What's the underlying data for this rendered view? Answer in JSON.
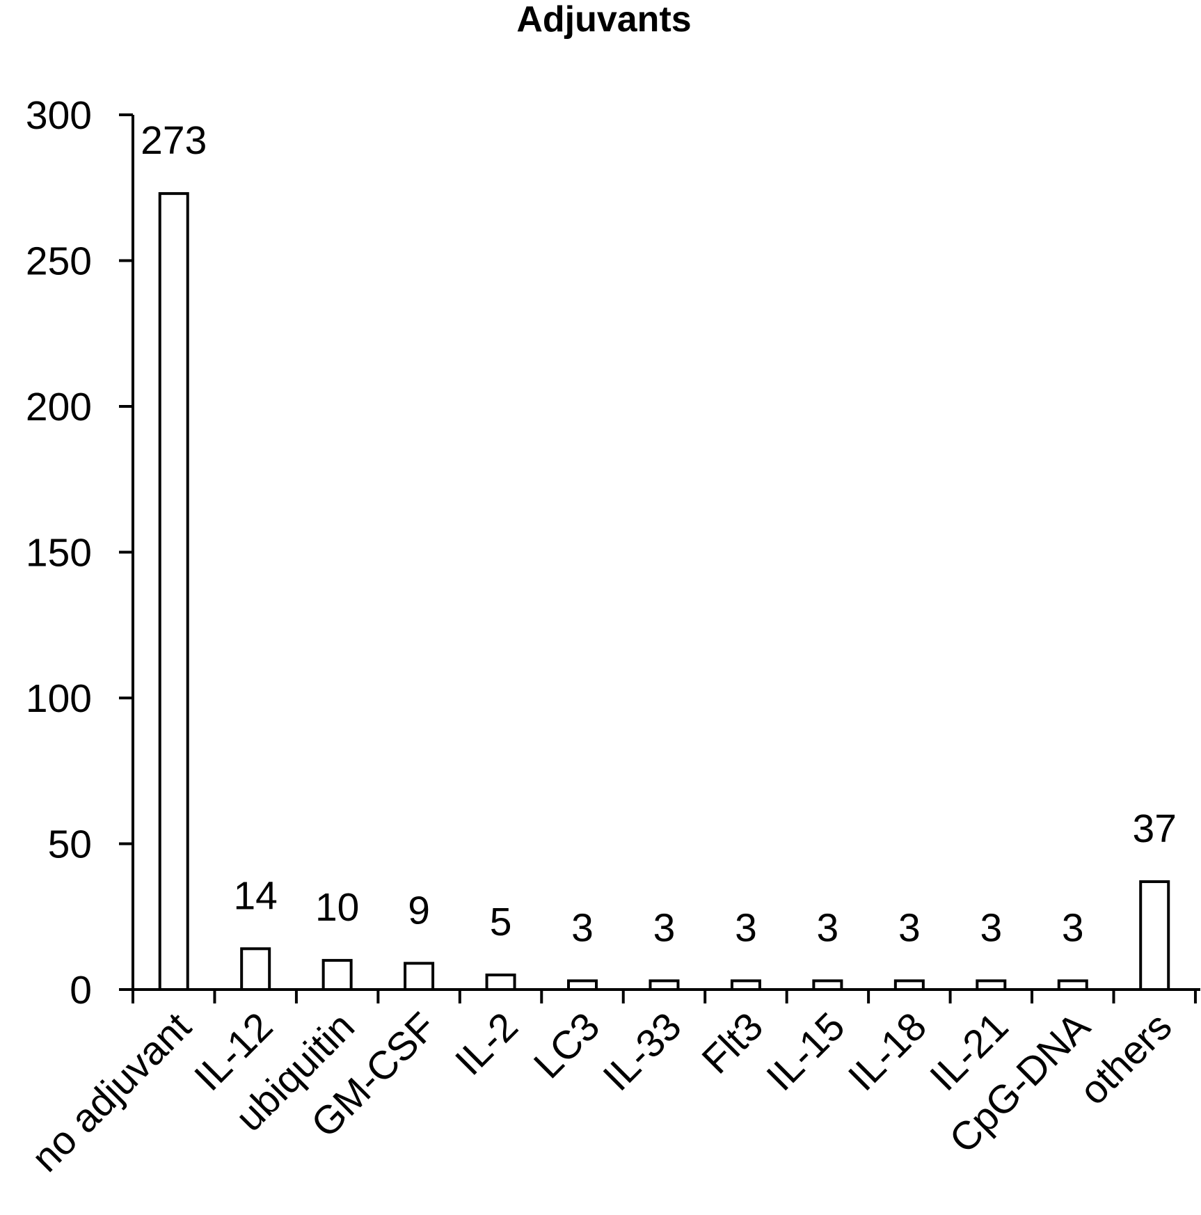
{
  "chart_data": {
    "type": "bar",
    "title": "Adjuvants",
    "xlabel": "",
    "ylabel": "",
    "ylim": [
      0,
      300
    ],
    "yticks": [
      0,
      50,
      100,
      150,
      200,
      250,
      300
    ],
    "categories": [
      "no adjuvant",
      "IL-12",
      "ubiquitin",
      "GM-CSF",
      "IL-2",
      "LC3",
      "IL-33",
      "Flt3",
      "IL-15",
      "IL-18",
      "IL-21",
      "CpG-DNA",
      "others"
    ],
    "values": [
      273,
      14,
      10,
      9,
      5,
      3,
      3,
      3,
      3,
      3,
      3,
      3,
      37
    ],
    "data_labels": [
      "273",
      "14",
      "10",
      "9",
      "5",
      "3",
      "3",
      "3",
      "3",
      "3",
      "3",
      "3",
      "37"
    ],
    "grid": false,
    "legend": "none",
    "bar_fill": "#ffffff",
    "bar_stroke": "#000000"
  }
}
